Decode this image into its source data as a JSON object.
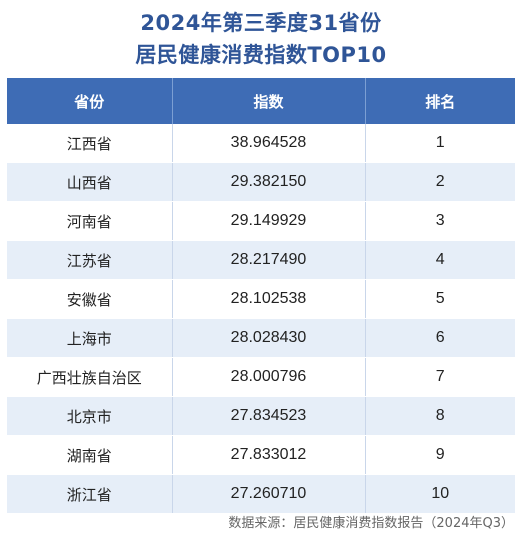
{
  "title": {
    "line1": "2024年第三季度31省份",
    "line2": "居民健康消费指数TOP10"
  },
  "table": {
    "headers": {
      "province": "省份",
      "index": "指数",
      "rank": "排名"
    },
    "rows": [
      {
        "province": "江西省",
        "index": "38.964528",
        "rank": "1"
      },
      {
        "province": "山西省",
        "index": "29.382150",
        "rank": "2"
      },
      {
        "province": "河南省",
        "index": "29.149929",
        "rank": "3"
      },
      {
        "province": "江苏省",
        "index": "28.217490",
        "rank": "4"
      },
      {
        "province": "安徽省",
        "index": "28.102538",
        "rank": "5"
      },
      {
        "province": "上海市",
        "index": "28.028430",
        "rank": "6"
      },
      {
        "province": "广西壮族自治区",
        "index": "28.000796",
        "rank": "7"
      },
      {
        "province": "北京市",
        "index": "27.834523",
        "rank": "8"
      },
      {
        "province": "湖南省",
        "index": "27.833012",
        "rank": "9"
      },
      {
        "province": "浙江省",
        "index": "27.260710",
        "rank": "10"
      }
    ]
  },
  "source": "数据来源：居民健康消费指数报告（2024年Q3）",
  "colors": {
    "title": "#2f5597",
    "header_bg": "#3e6cb5",
    "stripe_bg": "#e6eef8"
  }
}
